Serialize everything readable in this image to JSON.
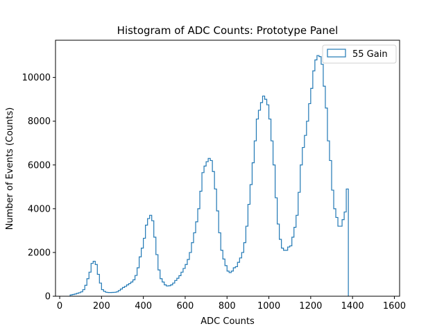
{
  "chart_data": {
    "type": "histogram",
    "title": "Histogram of ADC Counts: Prototype Panel",
    "xlabel": "ADC Counts",
    "ylabel": "Number of Events (Counts)",
    "xlim": [
      -20,
      1625
    ],
    "ylim": [
      0,
      11700
    ],
    "xticks": [
      0,
      200,
      400,
      600,
      800,
      1000,
      1200,
      1400,
      1600
    ],
    "yticks": [
      0,
      2000,
      4000,
      6000,
      8000,
      10000
    ],
    "grid": false,
    "legend_placement": "top-right",
    "bin_width": 10,
    "series": [
      {
        "name": "55 Gain",
        "color": "#1f77b4",
        "bin_start": 50,
        "counts": [
          60,
          80,
          100,
          130,
          160,
          200,
          300,
          500,
          800,
          1100,
          1500,
          1600,
          1450,
          1000,
          600,
          300,
          220,
          180,
          170,
          170,
          175,
          180,
          200,
          260,
          330,
          400,
          450,
          520,
          580,
          650,
          750,
          950,
          1300,
          1800,
          2200,
          2650,
          3250,
          3550,
          3700,
          3450,
          2700,
          1900,
          1200,
          800,
          650,
          520,
          470,
          480,
          520,
          600,
          720,
          820,
          940,
          1100,
          1270,
          1450,
          1680,
          2000,
          2450,
          2900,
          3400,
          4000,
          4800,
          5650,
          5950,
          6150,
          6300,
          6200,
          5700,
          4900,
          3900,
          2900,
          2100,
          1700,
          1400,
          1150,
          1080,
          1150,
          1300,
          1350,
          1550,
          1750,
          2000,
          2450,
          3200,
          4200,
          5100,
          6100,
          7100,
          8100,
          8500,
          8850,
          9150,
          9000,
          8750,
          8100,
          7100,
          6000,
          4500,
          3300,
          2600,
          2200,
          2100,
          2100,
          2250,
          2300,
          2700,
          3150,
          3700,
          4750,
          6000,
          6800,
          7350,
          8000,
          8800,
          9500,
          10300,
          10800,
          11000,
          10950,
          10600,
          9600,
          8600,
          7100,
          6200,
          4850,
          4000,
          3600,
          3200,
          3200,
          3500,
          3850,
          4900
        ]
      }
    ]
  }
}
